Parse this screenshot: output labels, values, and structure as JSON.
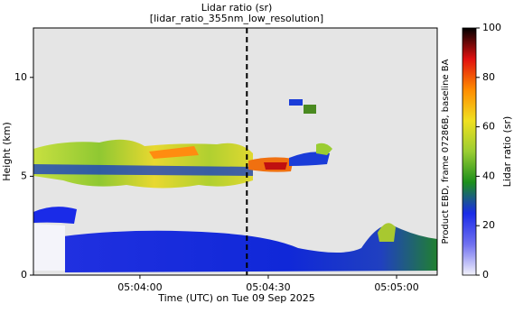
{
  "chart_data": {
    "type": "heatmap",
    "title": "Lidar ratio (sr)",
    "subtitle": "[lidar_ratio_355nm_low_resolution]",
    "x_label": "Time (UTC) on Tue 09 Sep 2025",
    "y_label": "Height (km)",
    "side_note": "Product EBD, frame 07286B, baseline BA",
    "xlim": [
      18215.1,
      18309.5
    ],
    "xticks": [
      {
        "value": 18240,
        "label": "05:04:00"
      },
      {
        "value": 18270,
        "label": "05:04:30"
      },
      {
        "value": 18300,
        "label": "05:05:00"
      }
    ],
    "ylim": [
      0,
      12.5
    ],
    "yticks": [
      0,
      5,
      10
    ],
    "marker_x": 18265,
    "background": "#e5e5e5",
    "colorbar": {
      "label": "Lidar ratio (sr)",
      "lim": [
        0,
        100
      ],
      "ticks": [
        0,
        20,
        40,
        60,
        80,
        100
      ],
      "colors": [
        "#f2f2fb",
        "#7070f0",
        "#1a2be8",
        "#1c8f1c",
        "#9acd32",
        "#f0e020",
        "#ff8c00",
        "#e01010",
        "#000000"
      ]
    }
  }
}
